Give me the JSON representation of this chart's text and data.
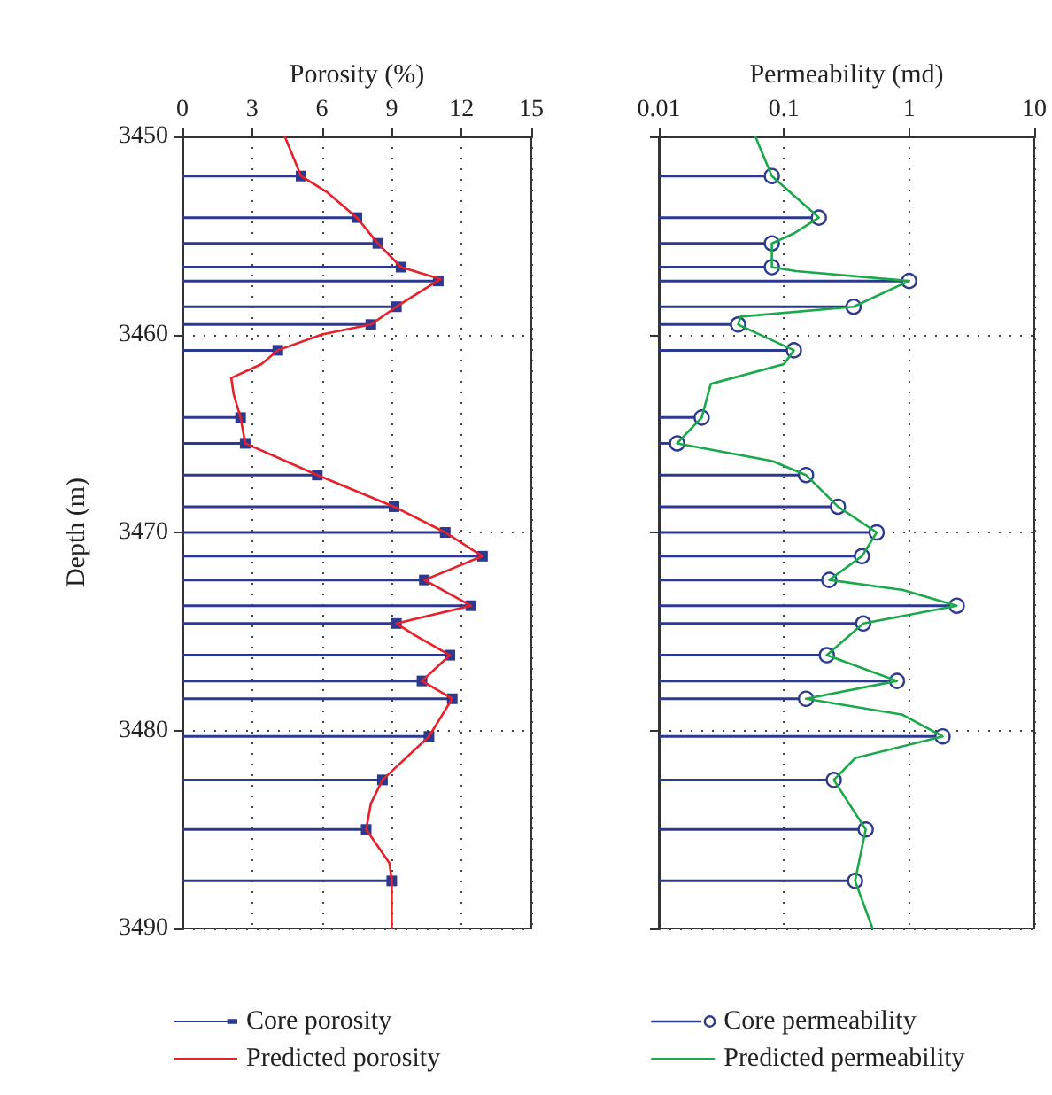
{
  "chart_data": [
    {
      "type": "lollipop",
      "orientation": "horizontal",
      "xlabel": "Porosity (%)",
      "ylabel": "Depth (m)",
      "xlim": [
        0,
        15
      ],
      "xticks": [
        0,
        3,
        6,
        9,
        12,
        15
      ],
      "ylim": [
        3490,
        3450
      ],
      "yticks": [
        3450,
        3460,
        3470,
        3480,
        3490
      ],
      "grid": true,
      "legend": "bottom",
      "series": [
        {
          "name": "Core porosity",
          "type": "lollipop",
          "marker": "square",
          "color": "#2b3990",
          "x": [
            3452.0,
            3454.1,
            3455.4,
            3456.6,
            3457.3,
            3458.6,
            3459.5,
            3460.8,
            3464.2,
            3465.5,
            3467.1,
            3468.7,
            3470.0,
            3471.2,
            3472.4,
            3473.7,
            3474.6,
            3476.2,
            3477.5,
            3478.4,
            3480.3,
            3482.5,
            3485.0,
            3487.6
          ],
          "values": [
            5.1,
            7.5,
            8.4,
            9.4,
            11.0,
            9.2,
            8.1,
            4.1,
            2.5,
            2.7,
            5.8,
            9.1,
            11.3,
            12.9,
            10.4,
            12.4,
            9.2,
            11.5,
            10.3,
            11.6,
            10.6,
            8.6,
            7.9,
            9.0
          ]
        },
        {
          "name": "Predicted porosity",
          "type": "line",
          "marker": "none",
          "color": "#e8202a",
          "x": [
            3450,
            3452.0,
            3452.8,
            3454.1,
            3455.4,
            3456.6,
            3457.2,
            3458.6,
            3459.5,
            3460.0,
            3460.8,
            3461.5,
            3462.2,
            3463.0,
            3464.2,
            3465.5,
            3467.1,
            3468.7,
            3470.0,
            3471.2,
            3472.4,
            3473.7,
            3474.6,
            3475.2,
            3476.2,
            3477.5,
            3478.4,
            3480.3,
            3482.5,
            3483.7,
            3485.0,
            3486.7,
            3487.6,
            3490
          ],
          "values": [
            4.4,
            5.1,
            6.2,
            7.5,
            8.4,
            9.4,
            11.1,
            9.2,
            8.1,
            6.0,
            4.1,
            3.4,
            2.1,
            2.2,
            2.5,
            2.7,
            5.8,
            9.1,
            11.3,
            12.9,
            10.4,
            12.4,
            9.2,
            10.0,
            11.5,
            10.3,
            11.6,
            10.6,
            8.6,
            8.1,
            7.9,
            8.9,
            9.0,
            9.0
          ]
        }
      ]
    },
    {
      "type": "lollipop",
      "orientation": "horizontal",
      "xlabel": "Permeability (md)",
      "log": "x",
      "xlim": [
        0.01,
        10
      ],
      "xticks": [
        0.01,
        0.1,
        1,
        10
      ],
      "ylim": [
        3490,
        3450
      ],
      "yticks": [
        3450,
        3460,
        3470,
        3480,
        3490
      ],
      "tick_labels": "x",
      "grid": true,
      "legend": "bottom",
      "series": [
        {
          "name": "Core permeability",
          "type": "lollipop",
          "marker": "circle",
          "color": "#2b3990",
          "x": [
            3452.0,
            3454.1,
            3455.4,
            3456.6,
            3457.3,
            3458.6,
            3459.5,
            3460.8,
            3464.2,
            3465.5,
            3467.1,
            3468.7,
            3470.0,
            3471.2,
            3472.4,
            3473.7,
            3474.6,
            3476.2,
            3477.5,
            3478.4,
            3480.3,
            3482.5,
            3485.0,
            3487.6
          ],
          "values": [
            0.08,
            0.19,
            0.08,
            0.08,
            1.0,
            0.36,
            0.043,
            0.12,
            0.022,
            0.014,
            0.15,
            0.27,
            0.55,
            0.42,
            0.23,
            2.4,
            0.43,
            0.22,
            0.8,
            0.15,
            1.85,
            0.25,
            0.45,
            0.37
          ]
        },
        {
          "name": "Predicted permeability",
          "type": "line",
          "marker": "none",
          "color": "#1aa84b",
          "x": [
            3450,
            3452.0,
            3453.6,
            3454.1,
            3454.9,
            3455.4,
            3456.6,
            3456.8,
            3457.3,
            3458.6,
            3459.1,
            3459.5,
            3460.8,
            3461.5,
            3462.5,
            3464.2,
            3465.5,
            3466.4,
            3467.1,
            3468.7,
            3470.0,
            3471.2,
            3472.4,
            3472.9,
            3473.7,
            3474.6,
            3476.2,
            3477.5,
            3478.4,
            3479.2,
            3480.3,
            3481.4,
            3482.5,
            3485.0,
            3487.6,
            3490
          ],
          "values": [
            0.059,
            0.08,
            0.155,
            0.19,
            0.12,
            0.08,
            0.08,
            0.125,
            1.0,
            0.36,
            0.045,
            0.043,
            0.12,
            0.1,
            0.026,
            0.022,
            0.014,
            0.081,
            0.15,
            0.27,
            0.55,
            0.42,
            0.23,
            0.88,
            2.4,
            0.43,
            0.22,
            0.8,
            0.15,
            0.88,
            1.85,
            0.37,
            0.25,
            0.45,
            0.37,
            0.51
          ]
        }
      ]
    }
  ]
}
